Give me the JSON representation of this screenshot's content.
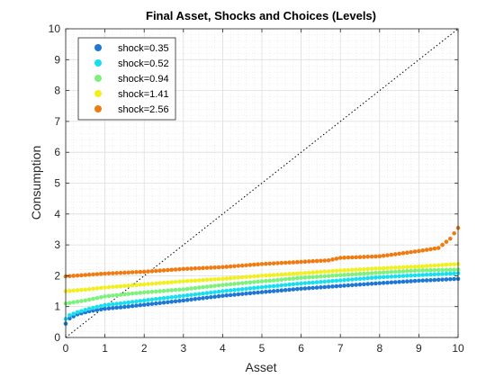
{
  "chart_data": {
    "type": "scatter",
    "title": "Final Asset, Shocks and Choices (Levels)",
    "xlabel": "Asset",
    "ylabel": "Consumption",
    "xlim": [
      0,
      10
    ],
    "ylim": [
      0,
      10
    ],
    "xticks": [
      "0",
      "1",
      "2",
      "3",
      "4",
      "5",
      "6",
      "7",
      "8",
      "9",
      "10"
    ],
    "yticks": [
      "0",
      "1",
      "2",
      "3",
      "4",
      "5",
      "6",
      "7",
      "8",
      "9",
      "10"
    ],
    "grid": "on (major and minor, dotted)",
    "legend_position": "top-left",
    "reference_line": {
      "style": "dotted",
      "color": "#000000",
      "points": [
        [
          0,
          0
        ],
        [
          10,
          10
        ]
      ]
    },
    "series": [
      {
        "name": "shock=0.35",
        "color": "#1f77d4",
        "knots": [
          [
            0,
            0.45
          ],
          [
            0.1,
            0.62
          ],
          [
            0.3,
            0.75
          ],
          [
            0.6,
            0.85
          ],
          [
            1.0,
            0.93
          ],
          [
            1.5,
            0.99
          ],
          [
            2.0,
            1.06
          ],
          [
            3.0,
            1.2
          ],
          [
            4.0,
            1.35
          ],
          [
            5.0,
            1.47
          ],
          [
            6.0,
            1.58
          ],
          [
            7.0,
            1.67
          ],
          [
            8.0,
            1.76
          ],
          [
            9.0,
            1.84
          ],
          [
            10.0,
            1.9
          ]
        ]
      },
      {
        "name": "shock=0.52",
        "color": "#16e0f0",
        "knots": [
          [
            0,
            0.6
          ],
          [
            0.1,
            0.72
          ],
          [
            0.3,
            0.82
          ],
          [
            0.6,
            0.93
          ],
          [
            1.0,
            1.05
          ],
          [
            1.5,
            1.12
          ],
          [
            2.0,
            1.2
          ],
          [
            3.0,
            1.35
          ],
          [
            4.0,
            1.5
          ],
          [
            5.0,
            1.63
          ],
          [
            6.0,
            1.75
          ],
          [
            7.0,
            1.85
          ],
          [
            8.0,
            1.95
          ],
          [
            9.0,
            2.02
          ],
          [
            10.0,
            2.08
          ]
        ]
      },
      {
        "name": "shock=0.94",
        "color": "#7df07d",
        "knots": [
          [
            0,
            1.1
          ],
          [
            0.5,
            1.2
          ],
          [
            1.0,
            1.33
          ],
          [
            1.5,
            1.4
          ],
          [
            2.0,
            1.46
          ],
          [
            3.0,
            1.56
          ],
          [
            4.0,
            1.7
          ],
          [
            5.0,
            1.82
          ],
          [
            6.0,
            1.93
          ],
          [
            7.0,
            2.02
          ],
          [
            8.0,
            2.1
          ],
          [
            9.0,
            2.17
          ],
          [
            10.0,
            2.2
          ]
        ]
      },
      {
        "name": "shock=1.41",
        "color": "#f0f020",
        "knots": [
          [
            0,
            1.5
          ],
          [
            0.5,
            1.55
          ],
          [
            1.0,
            1.62
          ],
          [
            2.0,
            1.72
          ],
          [
            3.0,
            1.82
          ],
          [
            4.0,
            1.9
          ],
          [
            5.0,
            2.0
          ],
          [
            6.0,
            2.08
          ],
          [
            7.0,
            2.17
          ],
          [
            8.0,
            2.24
          ],
          [
            9.0,
            2.3
          ],
          [
            10.0,
            2.38
          ]
        ]
      },
      {
        "name": "shock=2.56",
        "color": "#f07b10",
        "knots": [
          [
            0,
            1.98
          ],
          [
            1.0,
            2.07
          ],
          [
            1.5,
            2.1
          ],
          [
            2.0,
            2.13
          ],
          [
            3.0,
            2.22
          ],
          [
            4.0,
            2.28
          ],
          [
            5.0,
            2.38
          ],
          [
            6.0,
            2.45
          ],
          [
            6.7,
            2.5
          ],
          [
            7.0,
            2.58
          ],
          [
            8.0,
            2.63
          ],
          [
            9.0,
            2.8
          ],
          [
            9.5,
            2.9
          ],
          [
            9.8,
            3.2
          ],
          [
            10.0,
            3.55
          ]
        ]
      }
    ]
  }
}
